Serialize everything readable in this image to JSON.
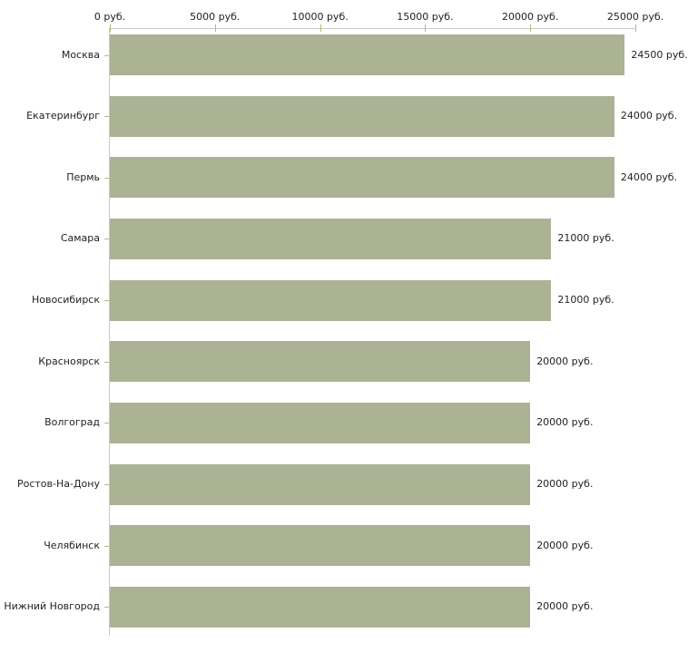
{
  "chart_data": {
    "type": "bar",
    "orientation": "horizontal",
    "categories": [
      "Москва",
      "Екатеринбург",
      "Пермь",
      "Самара",
      "Новосибирск",
      "Красноярск",
      "Волгоград",
      "Ростов-На-Дону",
      "Челябинск",
      "Нижний Новгород"
    ],
    "values": [
      24500,
      24000,
      24000,
      21000,
      21000,
      20000,
      20000,
      20000,
      20000,
      20000
    ],
    "value_labels": [
      "24500 руб.",
      "24000 руб.",
      "24000 руб.",
      "21000 руб.",
      "21000 руб.",
      "20000 руб.",
      "20000 руб.",
      "20000 руб.",
      "20000 руб.",
      "20000 руб."
    ],
    "x_axis": {
      "position": "top",
      "xlim": [
        0,
        25000
      ],
      "ticks": [
        0,
        5000,
        10000,
        15000,
        20000,
        25000
      ],
      "tick_labels": [
        "0 руб.",
        "5000 руб.",
        "10000 руб.",
        "15000 руб.",
        "20000 руб.",
        "25000 руб."
      ],
      "unit": "руб."
    },
    "grid": false,
    "legend": false,
    "colors": {
      "bar": "#acb294",
      "axis_line": "#c9c9c9",
      "tick_mark": "#bdb483",
      "text": "#222222",
      "background": "#ffffff"
    }
  }
}
